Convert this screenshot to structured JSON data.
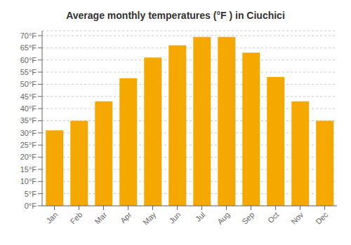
{
  "chart_data": {
    "type": "bar",
    "title": "Average monthly temperatures (°F ) in Ciuchici",
    "categories": [
      "Jan",
      "Feb",
      "Mar",
      "Apr",
      "May",
      "Jun",
      "Jul",
      "Aug",
      "Sep",
      "Oct",
      "Nov",
      "Dec"
    ],
    "values": [
      31,
      35,
      43,
      52.5,
      61,
      66,
      69.5,
      69.5,
      63,
      53,
      43,
      35
    ],
    "color": "#F5A800",
    "ylim": [
      0,
      72
    ],
    "yticks": [
      {
        "value": 0,
        "label": "0°F"
      },
      {
        "value": 5,
        "label": "5°F"
      },
      {
        "value": 10,
        "label": "10°F"
      },
      {
        "value": 15,
        "label": "15°F"
      },
      {
        "value": 20,
        "label": "20°F"
      },
      {
        "value": 25,
        "label": "25°F"
      },
      {
        "value": 30,
        "label": "30°F"
      },
      {
        "value": 35,
        "label": "35°F"
      },
      {
        "value": 40,
        "label": "40°F"
      },
      {
        "value": 45,
        "label": "45°F"
      },
      {
        "value": 50,
        "label": "50°F"
      },
      {
        "value": 55,
        "label": "55°F"
      },
      {
        "value": 60,
        "label": "60°F"
      },
      {
        "value": 65,
        "label": "65°F"
      },
      {
        "value": 70,
        "label": "70°F"
      }
    ],
    "grid": true
  }
}
